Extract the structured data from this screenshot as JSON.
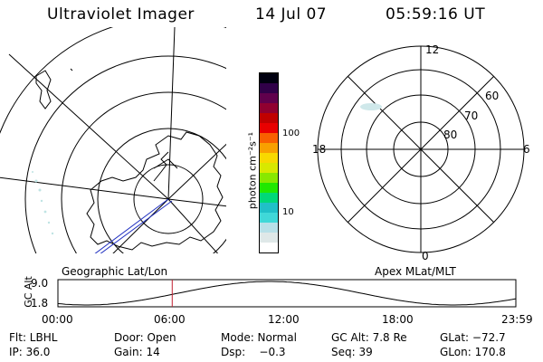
{
  "header": {
    "instrument": "Ultraviolet Imager",
    "date": "14 Jul 07",
    "time": "05:59:16 UT"
  },
  "colorbar": {
    "unit_label": "photon cm⁻²s⁻¹",
    "tick_100": "100",
    "tick_10": "10",
    "colors": [
      "#ffffff",
      "#dfe8e8",
      "#b8e0e8",
      "#40d8d8",
      "#20c0c8",
      "#00d878",
      "#20e800",
      "#88e800",
      "#d8e800",
      "#f8d800",
      "#f8a000",
      "#f86000",
      "#e80000",
      "#c00000",
      "#900030",
      "#60004c",
      "#300048",
      "#000010"
    ]
  },
  "left_map": {
    "caption": "Geographic Lat/Lon"
  },
  "right_map": {
    "caption": "Apex MLat/MLT",
    "mlt_labels": {
      "top": "12",
      "left": "18",
      "right": "6",
      "bottom": "0"
    },
    "lat_labels": [
      "60",
      "70",
      "80"
    ]
  },
  "timeline": {
    "ylabel": "GC Alt",
    "yticks": [
      "9.0",
      "1.8"
    ],
    "xticks": [
      "00:00",
      "06:00",
      "12:00",
      "18:00",
      "23:59"
    ],
    "current_time_hours": 5.99
  },
  "footer": {
    "filter": "Flt: LBHL",
    "door": "Door: Open",
    "mode": "Mode: Normal",
    "gcalt": "GC Alt: 7.8 Re",
    "glat": "GLat: −72.7",
    "ip": "IP: 36.0",
    "gain": "Gain: 14",
    "dsp": "Dsp:    −0.3",
    "seq": "Seq: 39",
    "glon": "GLon: 170.8"
  }
}
